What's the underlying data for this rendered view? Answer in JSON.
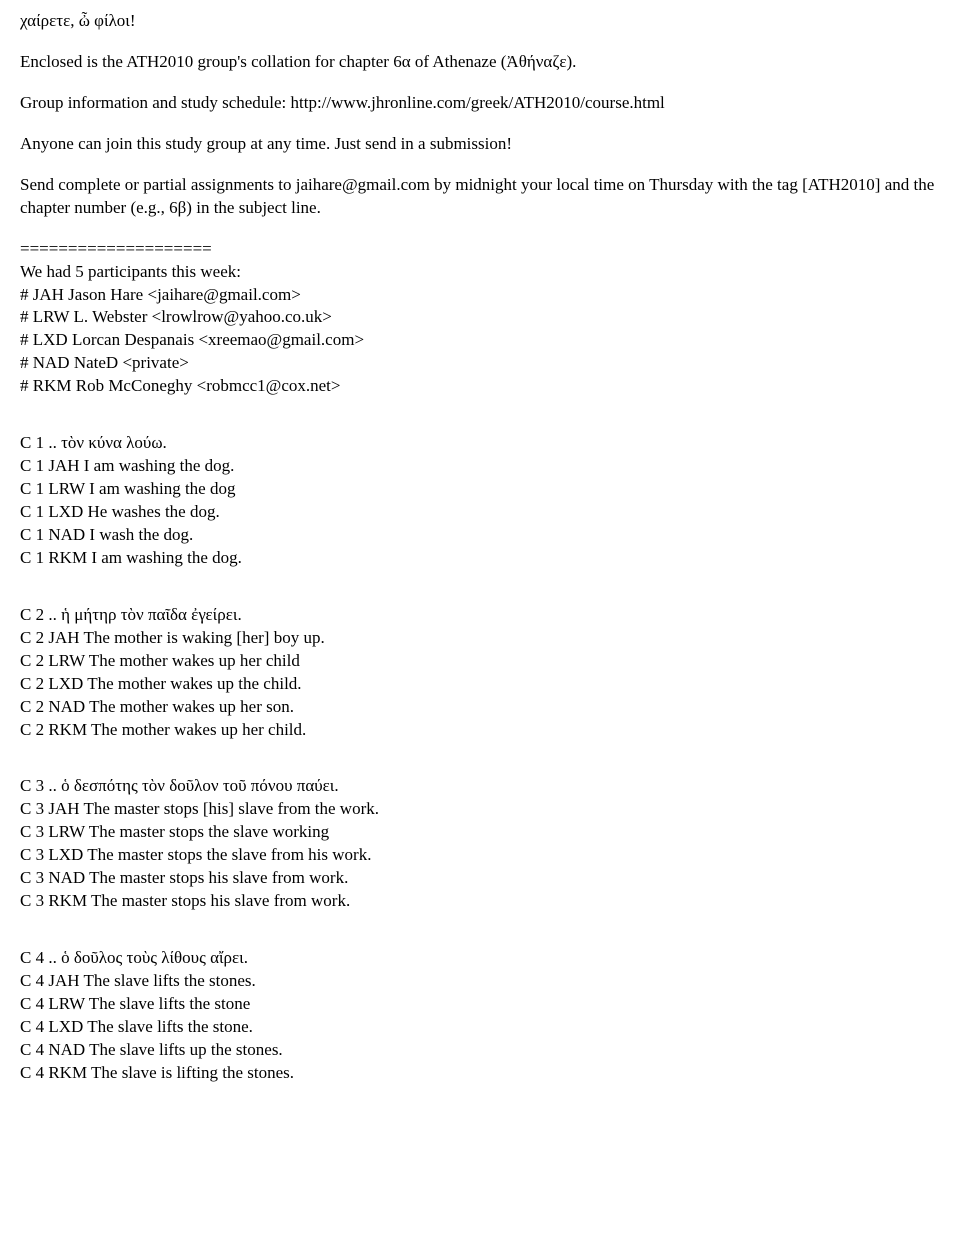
{
  "greeting": "χαίρετε, ὦ φίλοι!",
  "intro1": "Enclosed is the ATH2010 group's collation for chapter 6α of Athenaze (Ἀθήναζε).",
  "intro2": "Group information and study schedule: http://www.jhronline.com/greek/ATH2010/course.html",
  "intro3": "Anyone can join this study group at any time. Just send in a submission!",
  "intro4": "Send complete or partial assignments to jaihare@gmail.com by midnight your local time on Thursday with the tag [ATH2010] and the chapter number (e.g., 6β) in the subject line.",
  "divider": "====================",
  "participants_header": "We had 5 participants this week:",
  "participants": [
    "# JAH  Jason Hare <jaihare@gmail.com>",
    "# LRW  L. Webster <lrowlrow@yahoo.co.uk>",
    "# LXD  Lorcan Despanais <xreemao@gmail.com>",
    "# NAD  NateD <private>",
    "# RKM  Rob McConeghy <robmcc1@cox.net>"
  ],
  "c1": {
    "prompt": "C 1 ..  τὸν κύνα λούω.",
    "answers": [
      "C 1 JAH I am washing the dog.",
      "C 1 LRW I am washing the dog",
      "C 1 LXD He washes the dog.",
      "C 1 NAD I wash the dog.",
      "C 1 RKM I am washing the dog."
    ]
  },
  "c2": {
    "prompt": "C 2 ..  ἡ μήτηρ τὸν παῖδα ἐγείρει.",
    "answers": [
      "C 2 JAH The mother is waking [her] boy up.",
      "C 2 LRW The mother wakes up her child",
      "C 2 LXD The mother wakes up the child.",
      "C 2 NAD The mother wakes up her son.",
      "C 2 RKM The mother wakes up her child."
    ]
  },
  "c3": {
    "prompt": "C 3 ..  ὁ δεσπότης τὸν δοῦλον τοῦ πόνου παύει.",
    "answers": [
      "C 3 JAH The master stops [his] slave from the work.",
      "C 3 LRW The master stops the slave working",
      "C 3 LXD The master stops the slave from his work.",
      "C 3 NAD The master stops his slave from work.",
      "C 3 RKM The master stops his slave from work."
    ]
  },
  "c4": {
    "prompt": "C 4 ..  ὁ δοῦλος τοὺς λίθους αἴρει.",
    "answers": [
      "C 4 JAH The slave lifts the stones.",
      "C 4 LRW The slave lifts the stone",
      "C 4 LXD The slave lifts the stone.",
      "C 4 NAD The slave lifts up the stones.",
      "C 4 RKM The slave is lifting the stones."
    ]
  }
}
